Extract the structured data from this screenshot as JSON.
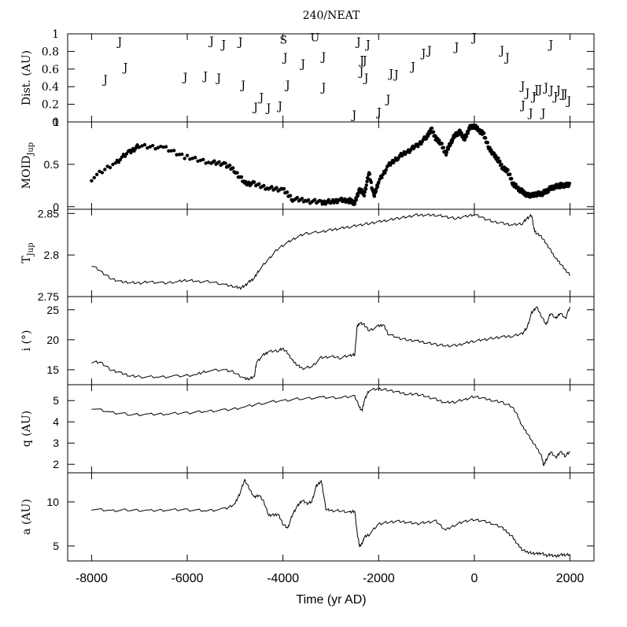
{
  "figure": {
    "title": "240/NEAT",
    "xlabel": "Time (yr AD)"
  },
  "chart_data": {
    "type": "line",
    "x_axis": {
      "ticks": [
        -8000,
        -6000,
        -4000,
        -2000,
        0,
        2000
      ],
      "xlim": [
        -8500,
        2500
      ]
    },
    "panels": [
      {
        "id": "dist",
        "type": "scatter",
        "ylabel": "Dist. (AU)",
        "ylim": [
          0,
          1.0
        ],
        "ticks": [
          0,
          0.2,
          0.4,
          0.6,
          0.8,
          1
        ],
        "tick_labels": [
          "0",
          "0.2",
          "0.4",
          "0.6",
          "0.8",
          "1"
        ],
        "markers": [
          {
            "x": -7710,
            "y": 0.49,
            "label": "J"
          },
          {
            "x": -7410,
            "y": 0.92,
            "label": "J"
          },
          {
            "x": -7290,
            "y": 0.63,
            "label": "J"
          },
          {
            "x": -6040,
            "y": 0.52,
            "label": "J"
          },
          {
            "x": -5620,
            "y": 0.53,
            "label": "J"
          },
          {
            "x": -5490,
            "y": 0.93,
            "label": "J"
          },
          {
            "x": -5340,
            "y": 0.51,
            "label": "J"
          },
          {
            "x": -5240,
            "y": 0.89,
            "label": "J"
          },
          {
            "x": -4890,
            "y": 0.92,
            "label": "J"
          },
          {
            "x": -4830,
            "y": 0.43,
            "label": "J"
          },
          {
            "x": -4570,
            "y": 0.18,
            "label": "J"
          },
          {
            "x": -4450,
            "y": 0.29,
            "label": "J"
          },
          {
            "x": -4300,
            "y": 0.17,
            "label": "J"
          },
          {
            "x": -4060,
            "y": 0.19,
            "label": "J"
          },
          {
            "x": -3950,
            "y": 0.74,
            "label": "J"
          },
          {
            "x": -3900,
            "y": 0.43,
            "label": "J"
          },
          {
            "x": -3580,
            "y": 0.67,
            "label": "J"
          },
          {
            "x": -3150,
            "y": 0.75,
            "label": "J"
          },
          {
            "x": -3150,
            "y": 0.4,
            "label": "J"
          },
          {
            "x": -2510,
            "y": 0.09,
            "label": "J"
          },
          {
            "x": -2420,
            "y": 0.92,
            "label": "J"
          },
          {
            "x": -2360,
            "y": 0.58,
            "label": "J"
          },
          {
            "x": -2350,
            "y": 0.71,
            "label": "J"
          },
          {
            "x": -2290,
            "y": 0.71,
            "label": "J"
          },
          {
            "x": -2260,
            "y": 0.51,
            "label": "J"
          },
          {
            "x": -2220,
            "y": 0.89,
            "label": "J"
          },
          {
            "x": -1990,
            "y": 0.12,
            "label": "J"
          },
          {
            "x": -1800,
            "y": 0.27,
            "label": "J"
          },
          {
            "x": -1740,
            "y": 0.56,
            "label": "J"
          },
          {
            "x": -1630,
            "y": 0.55,
            "label": "J"
          },
          {
            "x": -1280,
            "y": 0.64,
            "label": "J"
          },
          {
            "x": -1060,
            "y": 0.79,
            "label": "J"
          },
          {
            "x": -940,
            "y": 0.82,
            "label": "J"
          },
          {
            "x": -370,
            "y": 0.86,
            "label": "J"
          },
          {
            "x": 0,
            "y": 0.97,
            "label": "J"
          },
          {
            "x": 580,
            "y": 0.82,
            "label": "J"
          },
          {
            "x": 690,
            "y": 0.74,
            "label": "J"
          },
          {
            "x": 1010,
            "y": 0.42,
            "label": "J"
          },
          {
            "x": 1020,
            "y": 0.2,
            "label": "J"
          },
          {
            "x": 1110,
            "y": 0.34,
            "label": "J"
          },
          {
            "x": 1180,
            "y": 0.11,
            "label": "J"
          },
          {
            "x": 1250,
            "y": 0.3,
            "label": "J"
          },
          {
            "x": 1300,
            "y": 0.38,
            "label": "J"
          },
          {
            "x": 1370,
            "y": 0.38,
            "label": "J"
          },
          {
            "x": 1440,
            "y": 0.11,
            "label": "J"
          },
          {
            "x": 1500,
            "y": 0.4,
            "label": "J"
          },
          {
            "x": 1600,
            "y": 0.89,
            "label": "J"
          },
          {
            "x": 1610,
            "y": 0.37,
            "label": "J"
          },
          {
            "x": 1700,
            "y": 0.3,
            "label": "J"
          },
          {
            "x": 1760,
            "y": 0.37,
            "label": "J"
          },
          {
            "x": 1850,
            "y": 0.33,
            "label": "J"
          },
          {
            "x": 1900,
            "y": 0.33,
            "label": "J"
          },
          {
            "x": 1980,
            "y": 0.25,
            "label": "J"
          },
          {
            "x": -3990,
            "y": 0.94,
            "label": "S"
          },
          {
            "x": -3330,
            "y": 0.97,
            "label": "U"
          }
        ]
      },
      {
        "id": "moid",
        "type": "scatter",
        "ylabel": "MOID",
        "ylabel_sub": "Jup",
        "ylim": [
          -0.03,
          1.0
        ],
        "ticks": [
          0,
          0.5,
          1
        ],
        "tick_labels": [
          "0",
          "0.5",
          "1"
        ],
        "x": [
          -8000,
          -7500,
          -7200,
          -7000,
          -6500,
          -6000,
          -5500,
          -5200,
          -5000,
          -4800,
          -4600,
          -4300,
          -4000,
          -3800,
          -3500,
          -3200,
          -3000,
          -2800,
          -2600,
          -2500,
          -2400,
          -2300,
          -2200,
          -2100,
          -2000,
          -1800,
          -1600,
          -1400,
          -1200,
          -1000,
          -900,
          -800,
          -700,
          -600,
          -500,
          -400,
          -300,
          -200,
          -100,
          0,
          100,
          200,
          300,
          400,
          500,
          600,
          700,
          800,
          900,
          1000,
          1100,
          1200,
          1300,
          1400,
          1500,
          1600,
          1700,
          1800,
          1900,
          2000
        ],
        "values": [
          0.33,
          0.52,
          0.65,
          0.72,
          0.7,
          0.58,
          0.52,
          0.5,
          0.42,
          0.28,
          0.27,
          0.22,
          0.2,
          0.09,
          0.07,
          0.05,
          0.06,
          0.08,
          0.07,
          0.04,
          0.2,
          0.15,
          0.4,
          0.12,
          0.3,
          0.48,
          0.58,
          0.65,
          0.72,
          0.82,
          0.92,
          0.8,
          0.75,
          0.62,
          0.75,
          0.85,
          0.88,
          0.8,
          0.93,
          0.95,
          0.9,
          0.85,
          0.7,
          0.62,
          0.55,
          0.45,
          0.42,
          0.28,
          0.22,
          0.18,
          0.14,
          0.13,
          0.15,
          0.15,
          0.18,
          0.22,
          0.24,
          0.25,
          0.25,
          0.26
        ]
      },
      {
        "id": "tjup",
        "type": "line",
        "ylabel": "T",
        "ylabel_sub": "Jup",
        "ylim": [
          2.75,
          2.855
        ],
        "ticks": [
          2.75,
          2.8,
          2.85
        ],
        "tick_labels": [
          "2.75",
          "2.8",
          "2.85"
        ],
        "x": [
          -8000,
          -7800,
          -7600,
          -7400,
          -7200,
          -7000,
          -6800,
          -6500,
          -6200,
          -6000,
          -5800,
          -5500,
          -5200,
          -5000,
          -4900,
          -4800,
          -4700,
          -4600,
          -4500,
          -4300,
          -4100,
          -3900,
          -3700,
          -3500,
          -3200,
          -3000,
          -2800,
          -2600,
          -2400,
          -2200,
          -2000,
          -1800,
          -1600,
          -1400,
          -1200,
          -1000,
          -800,
          -600,
          -400,
          -200,
          0,
          200,
          400,
          600,
          800,
          1000,
          1100,
          1200,
          1250,
          1300,
          1400,
          1500,
          1600,
          1700,
          1800,
          1900,
          2000
        ],
        "values": [
          2.788,
          2.78,
          2.772,
          2.768,
          2.767,
          2.766,
          2.768,
          2.766,
          2.768,
          2.77,
          2.768,
          2.768,
          2.764,
          2.762,
          2.76,
          2.763,
          2.768,
          2.772,
          2.782,
          2.795,
          2.808,
          2.815,
          2.822,
          2.826,
          2.828,
          2.83,
          2.832,
          2.834,
          2.836,
          2.838,
          2.84,
          2.842,
          2.844,
          2.846,
          2.848,
          2.848,
          2.848,
          2.846,
          2.844,
          2.846,
          2.849,
          2.844,
          2.84,
          2.838,
          2.836,
          2.838,
          2.844,
          2.848,
          2.83,
          2.826,
          2.822,
          2.814,
          2.805,
          2.796,
          2.79,
          2.782,
          2.776
        ]
      },
      {
        "id": "incl",
        "type": "line",
        "ylabel": "i (°)",
        "ylim": [
          12.5,
          27.2
        ],
        "ticks": [
          15,
          20,
          25
        ],
        "tick_labels": [
          "15",
          "20",
          "25"
        ],
        "x": [
          -8000,
          -7800,
          -7600,
          -7400,
          -7200,
          -7000,
          -6600,
          -6200,
          -5800,
          -5600,
          -5200,
          -5000,
          -4800,
          -4700,
          -4600,
          -4550,
          -4400,
          -4300,
          -4100,
          -4000,
          -3900,
          -3800,
          -3700,
          -3600,
          -3400,
          -3200,
          -3000,
          -2800,
          -2600,
          -2500,
          -2450,
          -2400,
          -2300,
          -2200,
          -2000,
          -1900,
          -1800,
          -1600,
          -1400,
          -1200,
          -1000,
          -800,
          -600,
          -400,
          -200,
          0,
          200,
          400,
          600,
          800,
          1000,
          1100,
          1200,
          1300,
          1400,
          1500,
          1600,
          1700,
          1800,
          1900,
          2000
        ],
        "values": [
          16.3,
          16.2,
          15.0,
          14.5,
          14.0,
          13.8,
          13.8,
          13.9,
          14.2,
          14.8,
          15.0,
          14.5,
          13.5,
          13.5,
          13.8,
          16.3,
          17.5,
          18.0,
          18.2,
          18.5,
          17.8,
          16.5,
          15.8,
          15.2,
          15.5,
          17.0,
          17.2,
          17.0,
          17.4,
          17.5,
          22.2,
          22.8,
          22.5,
          21.5,
          22.3,
          22.5,
          21.0,
          20.3,
          20.0,
          19.8,
          19.5,
          19.2,
          19.0,
          19.0,
          19.4,
          19.8,
          20.0,
          20.3,
          20.5,
          20.6,
          21.0,
          22.0,
          24.5,
          25.5,
          24.0,
          22.5,
          24.5,
          23.5,
          24.5,
          23.5,
          25.5
        ]
      },
      {
        "id": "q",
        "type": "line",
        "ylabel": "q (AU)",
        "ylim": [
          1.6,
          5.75
        ],
        "ticks": [
          2,
          3,
          4,
          5
        ],
        "tick_labels": [
          "2",
          "3",
          "4",
          "5"
        ],
        "x": [
          -8000,
          -7600,
          -7200,
          -6800,
          -6400,
          -6000,
          -5600,
          -5200,
          -4800,
          -4400,
          -4000,
          -3600,
          -3200,
          -2800,
          -2500,
          -2400,
          -2350,
          -2300,
          -2200,
          -2000,
          -1800,
          -1600,
          -1400,
          -1200,
          -1000,
          -800,
          -600,
          -400,
          -200,
          0,
          200,
          400,
          600,
          800,
          900,
          1000,
          1100,
          1200,
          1300,
          1400,
          1450,
          1500,
          1600,
          1700,
          1800,
          1900,
          2000
        ],
        "values": [
          4.65,
          4.45,
          4.35,
          4.35,
          4.38,
          4.42,
          4.5,
          4.55,
          4.7,
          4.9,
          5.0,
          5.1,
          5.15,
          5.15,
          5.2,
          4.7,
          4.5,
          5.0,
          5.5,
          5.55,
          5.5,
          5.4,
          5.3,
          5.3,
          5.2,
          5.05,
          4.9,
          4.95,
          5.05,
          5.2,
          5.1,
          5.0,
          4.9,
          4.7,
          4.3,
          3.8,
          3.5,
          3.1,
          2.8,
          2.4,
          1.95,
          2.2,
          2.6,
          2.3,
          2.6,
          2.4,
          2.6
        ]
      },
      {
        "id": "a",
        "type": "line",
        "ylabel": "a (AU)",
        "ylim": [
          3.3,
          13.3
        ],
        "ticks": [
          5,
          10
        ],
        "tick_labels": [
          "5",
          "10"
        ],
        "x": [
          -8000,
          -7600,
          -7200,
          -6800,
          -6400,
          -6000,
          -5600,
          -5200,
          -5000,
          -4900,
          -4800,
          -4700,
          -4600,
          -4500,
          -4400,
          -4300,
          -4200,
          -4100,
          -4000,
          -3900,
          -3800,
          -3700,
          -3600,
          -3500,
          -3400,
          -3300,
          -3200,
          -3100,
          -3000,
          -2800,
          -2600,
          -2500,
          -2450,
          -2400,
          -2350,
          -2300,
          -2200,
          -2000,
          -1800,
          -1600,
          -1400,
          -1200,
          -1000,
          -800,
          -600,
          -400,
          -200,
          0,
          200,
          400,
          600,
          700,
          800,
          900,
          1000,
          1100,
          1200,
          1300,
          1400,
          1500,
          1600,
          1700,
          1800,
          1900,
          2000
        ],
        "values": [
          9.2,
          9.0,
          9.1,
          9.0,
          9.1,
          9.1,
          9.0,
          9.2,
          9.8,
          11.0,
          12.5,
          11.5,
          10.5,
          10.8,
          10.0,
          8.5,
          8.5,
          8.6,
          7.5,
          7.0,
          8.6,
          9.5,
          10.2,
          9.8,
          10.0,
          11.8,
          12.4,
          9.2,
          9.0,
          9.0,
          8.8,
          9.0,
          6.5,
          5.0,
          5.2,
          6.0,
          6.3,
          7.5,
          7.7,
          7.8,
          7.7,
          7.5,
          7.7,
          7.8,
          6.8,
          7.4,
          7.8,
          8.0,
          7.8,
          7.5,
          7.0,
          6.5,
          6.0,
          5.2,
          4.6,
          4.3,
          4.2,
          4.1,
          4.2,
          3.9,
          4.0,
          3.8,
          4.0,
          4.0,
          4.0
        ]
      }
    ]
  }
}
